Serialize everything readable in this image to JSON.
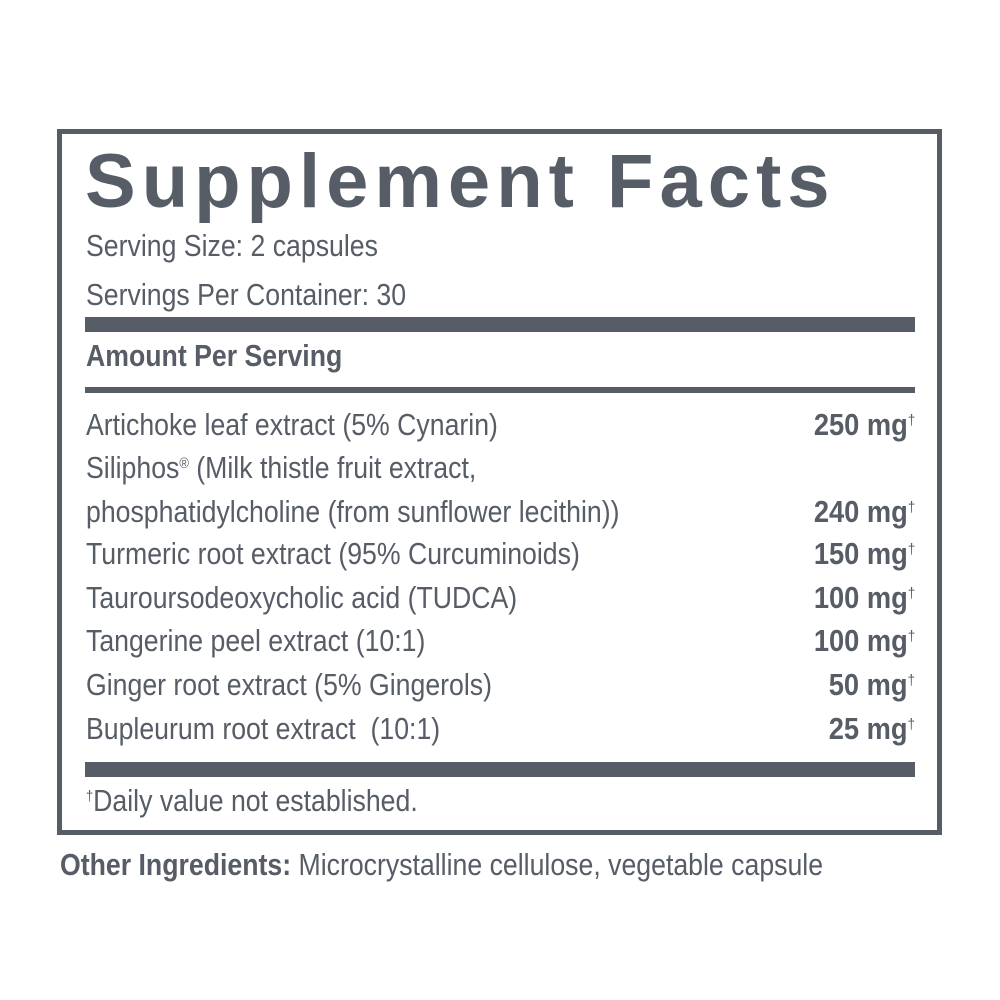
{
  "label": {
    "title": "Supplement Facts",
    "serving_size": "Serving Size: 2 capsules",
    "servings_per_container": "Servings Per Container: 30",
    "amount_header": "Amount Per Serving",
    "ingredients": [
      {
        "name": "Artichoke leaf extract (5% Cynarin)",
        "amount": "250 mg",
        "mark": "†"
      },
      {
        "name": "Siliphos",
        "name_mark": "®",
        "name_rest": " (Milk thistle fruit extract,",
        "name_line2": "phosphatidylcholine (from sunflower lecithin))",
        "amount": "240 mg",
        "mark": "†"
      },
      {
        "name": "Turmeric root extract (95% Curcuminoids)",
        "amount": "150 mg",
        "mark": "†"
      },
      {
        "name": "Tauroursodeoxycholic acid (TUDCA)",
        "amount": "100 mg",
        "mark": "†"
      },
      {
        "name": "Tangerine peel extract (10:1)",
        "amount": "100 mg",
        "mark": "†"
      },
      {
        "name": "Ginger root extract (5% Gingerols)",
        "amount": "50 mg",
        "mark": "†"
      },
      {
        "name": "Bupleurum root extract  (10:1)",
        "amount": "25 mg",
        "mark": "†"
      }
    ],
    "footnote_mark": "†",
    "footnote": "Daily value not established."
  },
  "other_ingredients": {
    "label": "Other Ingredients:",
    "value": " Microcrystalline cellulose, vegetable capsule"
  },
  "colors": {
    "ink": "#575d66",
    "background": "#ffffff"
  }
}
